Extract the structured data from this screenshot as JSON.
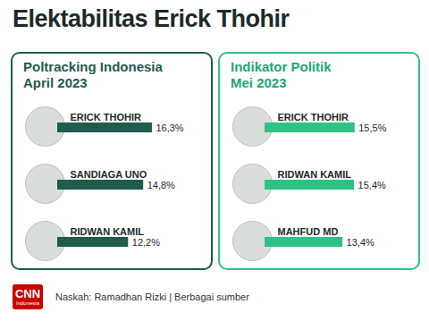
{
  "title": "Elektabilitas Erick Thohir",
  "footer": "Naskah: Ramadhan Rizki | Berbagai sumber",
  "logo": [
    "CNN",
    "Indonesia"
  ],
  "chart_data": [
    {
      "type": "bar",
      "orientation": "horizontal",
      "title": "Poltracking Indonesia",
      "subtitle": "April 2023",
      "categories": [
        "ERICK THOHIR",
        "SANDIAGA UNO",
        "RIDWAN KAMIL"
      ],
      "values": [
        16.3,
        14.8,
        12.2
      ],
      "value_labels": [
        "16,3%",
        "14,8%",
        "12,2%"
      ],
      "color": "#1f5c4d",
      "xlim": [
        0,
        20
      ],
      "xticks": [],
      "tick_labels": false,
      "data_labels": true,
      "grid": false
    },
    {
      "type": "bar",
      "orientation": "horizontal",
      "title": "Indikator Politik",
      "subtitle": "Mei 2023",
      "categories": [
        "ERICK THOHIR",
        "RIDWAN KAMIL",
        "MAHFUD MD"
      ],
      "values": [
        15.5,
        15.4,
        13.4
      ],
      "value_labels": [
        "15,5%",
        "15,4%",
        "13,4%"
      ],
      "color": "#2fc285",
      "xlim": [
        0,
        20
      ],
      "xticks": [],
      "tick_labels": false,
      "data_labels": true,
      "grid": false
    }
  ]
}
